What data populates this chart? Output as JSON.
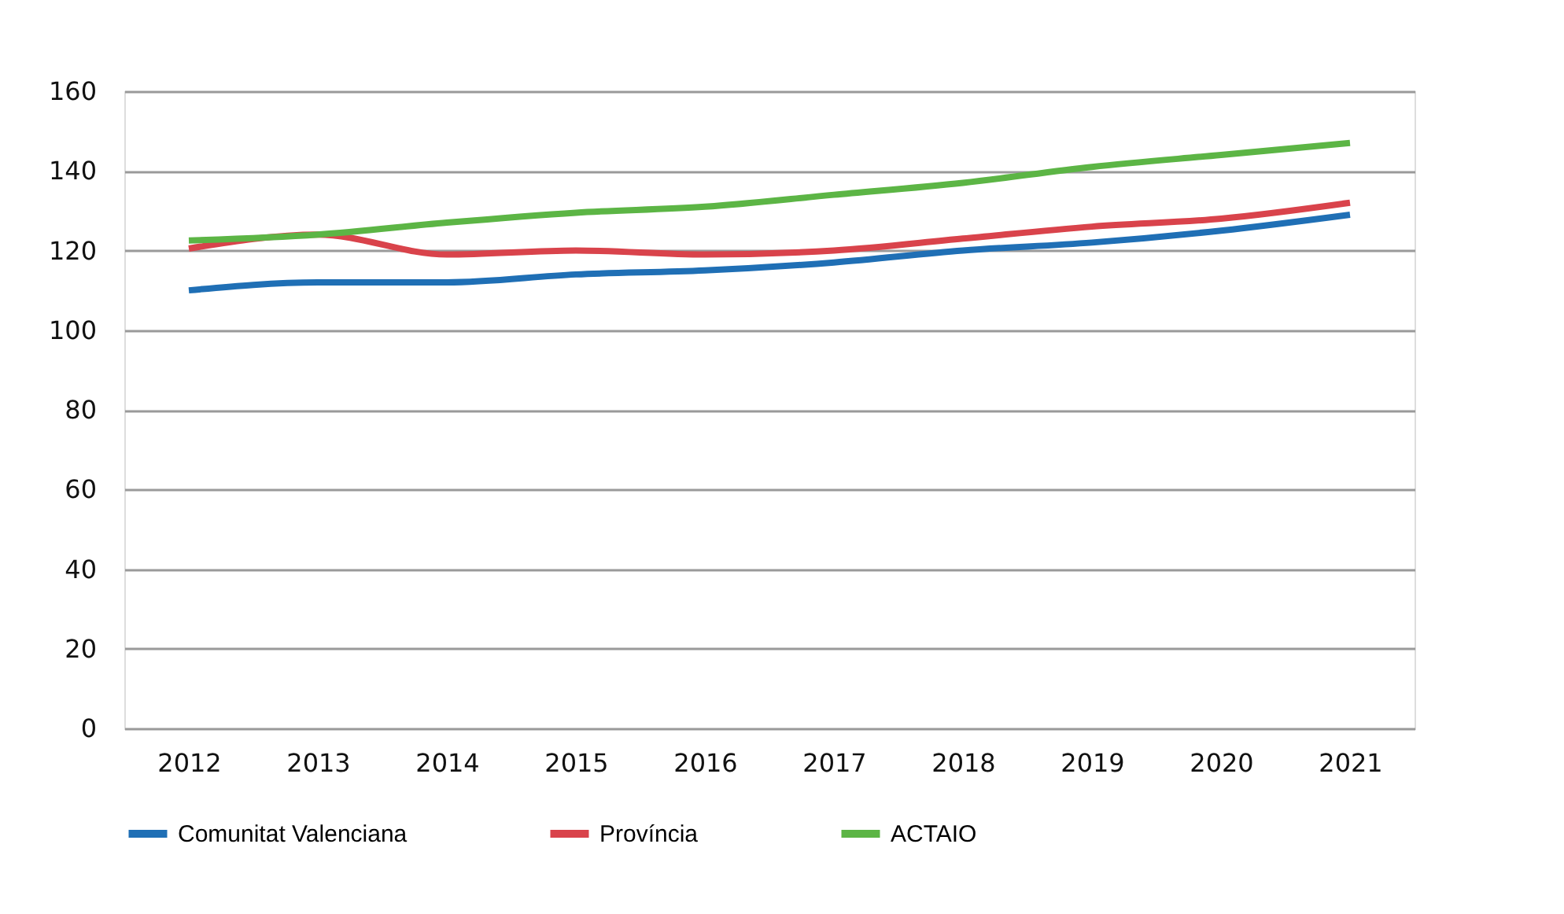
{
  "chart_data": {
    "type": "line",
    "categories": [
      "2012",
      "2013",
      "2014",
      "2015",
      "2016",
      "2017",
      "2018",
      "2019",
      "2020",
      "2021"
    ],
    "series": [
      {
        "name": "Comunitat Valenciana",
        "color": "#1f6fb5",
        "values": [
          110,
          112,
          112,
          114,
          115,
          117,
          120,
          122,
          125,
          129
        ]
      },
      {
        "name": "Província",
        "color": "#d9434b",
        "values": [
          120.5,
          124,
          119,
          120,
          119,
          120,
          123,
          126,
          128,
          132
        ]
      },
      {
        "name": "ACTAIO",
        "color": "#5cb545",
        "values": [
          122.5,
          124,
          127,
          129.5,
          131,
          134,
          137,
          141,
          144,
          147
        ]
      }
    ],
    "ylim": [
      0,
      160
    ],
    "yticks": [
      0,
      20,
      40,
      60,
      80,
      100,
      120,
      140,
      160
    ],
    "grid": "y",
    "legend": "bottom",
    "marker": "none",
    "line_style": "solid"
  }
}
